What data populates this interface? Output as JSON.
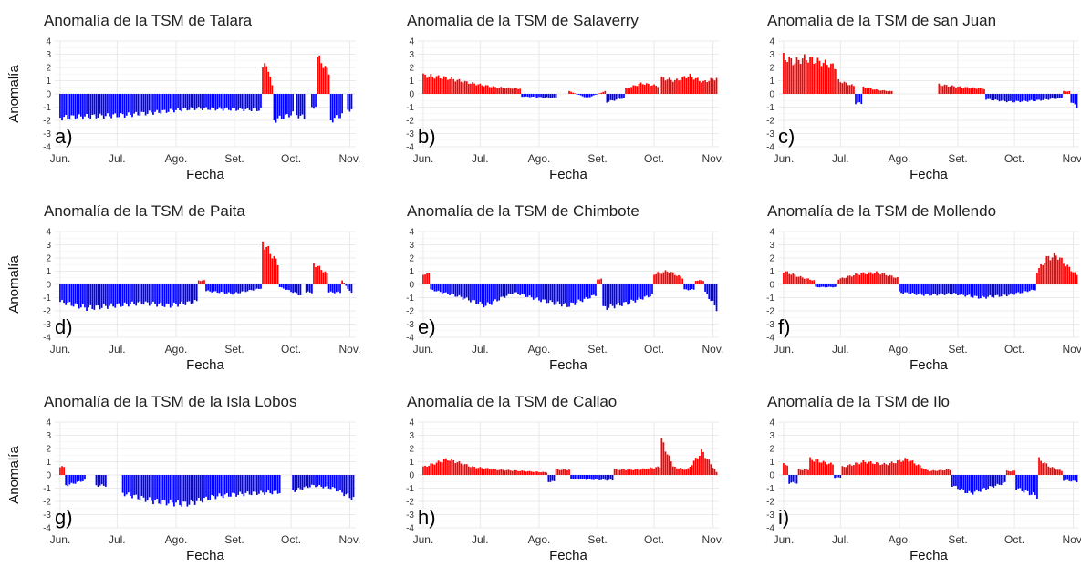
{
  "colors": {
    "positive": "#ff0000",
    "negative": "#0000ff",
    "panel_bg": "#ffffff",
    "grid_major": "#e4e4e4",
    "grid_minor": "#f2f2f2"
  },
  "chart_data": [
    {
      "type": "bar",
      "letter": "a)",
      "title": "Anomalía de la TSM de Talara",
      "xlabel": "Fecha",
      "ylabel": "Anomalía",
      "ylim": [
        -4,
        4
      ],
      "y_ticks": [
        "-4",
        "-3",
        "-2",
        "-1",
        "0",
        "1",
        "2",
        "3",
        "4"
      ],
      "x_ticks": [
        "Jun.",
        "Jul.",
        "Ago.",
        "Set.",
        "Oct.",
        "Nov."
      ],
      "x_range": [
        "2017-06-01",
        "2017-11-03"
      ],
      "segments": [
        {
          "start": "2017-06-01",
          "end": "2017-09-15",
          "values": [
            -1.8,
            -1.6,
            -1.1,
            -1.2
          ]
        },
        {
          "start": "2017-09-16",
          "end": "2017-09-21",
          "values": [
            2.0,
            2.2,
            0.6
          ]
        },
        {
          "start": "2017-09-22",
          "end": "2017-10-02",
          "values": [
            -2.0,
            -1.5
          ]
        },
        {
          "start": "2017-10-04",
          "end": "2017-10-08",
          "values": [
            -1.6,
            -1.8
          ]
        },
        {
          "start": "2017-10-12",
          "end": "2017-10-14",
          "values": [
            -1.0
          ]
        },
        {
          "start": "2017-10-15",
          "end": "2017-10-21",
          "values": [
            2.8,
            1.6
          ]
        },
        {
          "start": "2017-10-22",
          "end": "2017-10-28",
          "values": [
            -2.0,
            -1.6
          ]
        },
        {
          "start": "2017-10-31",
          "end": "2017-11-02",
          "values": [
            -1.2
          ]
        }
      ]
    },
    {
      "type": "bar",
      "letter": "b)",
      "title": "Anomalía de la TSM de Salaverry",
      "xlabel": "Fecha",
      "ylabel": "",
      "ylim": [
        -4,
        4
      ],
      "y_ticks": [
        "-4",
        "-3",
        "-2",
        "-1",
        "0",
        "1",
        "2",
        "3",
        "4"
      ],
      "x_ticks": [
        "Jun.",
        "Jul.",
        "Ago.",
        "Set.",
        "Oct.",
        "Nov."
      ],
      "x_range": [
        "2017-06-01",
        "2017-11-03"
      ],
      "segments": [
        {
          "start": "2017-06-01",
          "end": "2017-07-22",
          "values": [
            1.4,
            1.2,
            0.8,
            0.5,
            0.4
          ]
        },
        {
          "start": "2017-07-23",
          "end": "2017-08-10",
          "values": [
            -0.2,
            -0.3
          ]
        },
        {
          "start": "2017-08-17",
          "end": "2017-09-05",
          "values": [
            0.2,
            -0.3,
            0.2
          ]
        },
        {
          "start": "2017-09-06",
          "end": "2017-09-15",
          "values": [
            -0.6,
            -0.3
          ]
        },
        {
          "start": "2017-09-16",
          "end": "2017-10-03",
          "values": [
            0.4,
            0.8,
            0.6
          ]
        },
        {
          "start": "2017-10-05",
          "end": "2017-11-03",
          "values": [
            1.2,
            1.0,
            1.4,
            0.9,
            1.2
          ]
        }
      ]
    },
    {
      "type": "bar",
      "letter": "c)",
      "title": "Anomalía de la TSM de san Juan",
      "xlabel": "Fecha",
      "ylabel": "",
      "ylim": [
        -4,
        4
      ],
      "y_ticks": [
        "-4",
        "-3",
        "-2",
        "-1",
        "0",
        "1",
        "2",
        "3",
        "4"
      ],
      "x_ticks": [
        "Jun.",
        "Jul.",
        "Ago.",
        "Set.",
        "Oct.",
        "Nov."
      ],
      "x_range": [
        "2017-06-01",
        "2017-11-03"
      ],
      "segments": [
        {
          "start": "2017-06-01",
          "end": "2017-06-29",
          "values": [
            2.8,
            2.4,
            2.7,
            2.5,
            2.3,
            2.0
          ]
        },
        {
          "start": "2017-06-30",
          "end": "2017-07-08",
          "values": [
            1.0,
            0.6
          ]
        },
        {
          "start": "2017-07-09",
          "end": "2017-07-12",
          "values": [
            -0.7
          ]
        },
        {
          "start": "2017-07-13",
          "end": "2017-07-28",
          "values": [
            0.5,
            0.3,
            0.2
          ]
        },
        {
          "start": "2017-08-22",
          "end": "2017-09-15",
          "values": [
            0.7,
            0.5,
            0.4
          ]
        },
        {
          "start": "2017-09-16",
          "end": "2017-10-26",
          "values": [
            -0.4,
            -0.6,
            -0.5,
            -0.3
          ]
        },
        {
          "start": "2017-10-27",
          "end": "2017-10-30",
          "values": [
            0.2
          ]
        },
        {
          "start": "2017-10-31",
          "end": "2017-11-03",
          "values": [
            -0.6,
            -1.0
          ]
        }
      ]
    },
    {
      "type": "bar",
      "letter": "d)",
      "title": "Anomalía de la TSM de Paita",
      "xlabel": "Fecha",
      "ylabel": "Anomalía",
      "ylim": [
        -4,
        4
      ],
      "y_ticks": [
        "-4",
        "-3",
        "-2",
        "-1",
        "0",
        "1",
        "2",
        "3",
        "4"
      ],
      "x_ticks": [
        "Jun.",
        "Jul.",
        "Ago.",
        "Set.",
        "Oct.",
        "Nov."
      ],
      "x_range": [
        "2017-06-01",
        "2017-11-03"
      ],
      "segments": [
        {
          "start": "2017-06-01",
          "end": "2017-08-12",
          "values": [
            -1.3,
            -1.8,
            -1.6,
            -1.4,
            -1.6,
            -1.3
          ]
        },
        {
          "start": "2017-08-13",
          "end": "2017-08-16",
          "values": [
            0.3
          ]
        },
        {
          "start": "2017-08-17",
          "end": "2017-09-15",
          "values": [
            -0.5,
            -0.7,
            -0.3
          ]
        },
        {
          "start": "2017-09-16",
          "end": "2017-09-24",
          "values": [
            3.2,
            1.6
          ]
        },
        {
          "start": "2017-09-25",
          "end": "2017-10-06",
          "values": [
            -0.2,
            -0.8
          ]
        },
        {
          "start": "2017-10-09",
          "end": "2017-10-12",
          "values": [
            -0.6
          ]
        },
        {
          "start": "2017-10-13",
          "end": "2017-10-20",
          "values": [
            1.6,
            0.8
          ]
        },
        {
          "start": "2017-10-21",
          "end": "2017-10-27",
          "values": [
            -0.6
          ]
        },
        {
          "start": "2017-10-28",
          "end": "2017-11-02",
          "values": [
            0.3,
            -0.7
          ]
        }
      ]
    },
    {
      "type": "bar",
      "letter": "e)",
      "title": "Anomalía de la TSM de Chimbote",
      "xlabel": "Fecha",
      "ylabel": "",
      "ylim": [
        -4,
        4
      ],
      "y_ticks": [
        "-4",
        "-3",
        "-2",
        "-1",
        "0",
        "1",
        "2",
        "3",
        "4"
      ],
      "x_ticks": [
        "Jun.",
        "Jul.",
        "Ago.",
        "Set.",
        "Oct.",
        "Nov."
      ],
      "x_range": [
        "2017-06-01",
        "2017-11-03"
      ],
      "segments": [
        {
          "start": "2017-06-01",
          "end": "2017-06-04",
          "values": [
            0.8
          ]
        },
        {
          "start": "2017-06-05",
          "end": "2017-08-31",
          "values": [
            -0.4,
            -0.9,
            -1.6,
            -0.6,
            -1.2,
            -1.6,
            -0.8
          ]
        },
        {
          "start": "2017-09-01",
          "end": "2017-09-03",
          "values": [
            0.4
          ]
        },
        {
          "start": "2017-09-04",
          "end": "2017-09-30",
          "values": [
            -1.8,
            -1.4,
            -0.8
          ]
        },
        {
          "start": "2017-10-01",
          "end": "2017-10-16",
          "values": [
            0.8,
            1.0,
            0.5
          ]
        },
        {
          "start": "2017-10-17",
          "end": "2017-10-22",
          "values": [
            -0.4
          ]
        },
        {
          "start": "2017-10-23",
          "end": "2017-10-27",
          "values": [
            0.3
          ]
        },
        {
          "start": "2017-10-28",
          "end": "2017-11-03",
          "values": [
            -0.6,
            -1.8
          ]
        }
      ]
    },
    {
      "type": "bar",
      "letter": "f)",
      "title": "Anomalía de la TSM de Mollendo",
      "xlabel": "Fecha",
      "ylabel": "",
      "ylim": [
        -4,
        4
      ],
      "y_ticks": [
        "-4",
        "-3",
        "-2",
        "-1",
        "0",
        "1",
        "2",
        "3",
        "4"
      ],
      "x_ticks": [
        "Jun.",
        "Jul.",
        "Ago.",
        "Set.",
        "Oct.",
        "Nov."
      ],
      "x_range": [
        "2017-06-01",
        "2017-11-03"
      ],
      "segments": [
        {
          "start": "2017-06-01",
          "end": "2017-06-17",
          "values": [
            1.0,
            0.6,
            0.3
          ]
        },
        {
          "start": "2017-06-18",
          "end": "2017-06-29",
          "values": [
            -0.2
          ]
        },
        {
          "start": "2017-06-30",
          "end": "2017-07-31",
          "values": [
            0.4,
            0.8,
            0.9,
            0.5
          ]
        },
        {
          "start": "2017-08-01",
          "end": "2017-10-12",
          "values": [
            -0.6,
            -0.8,
            -0.7,
            -1.0,
            -0.8,
            -0.4
          ]
        },
        {
          "start": "2017-10-13",
          "end": "2017-11-03",
          "values": [
            1.0,
            2.0,
            2.2,
            1.4,
            0.7
          ]
        }
      ]
    },
    {
      "type": "bar",
      "letter": "g)",
      "title": "Anomalía de la TSM de la Isla Lobos",
      "xlabel": "Fecha",
      "ylabel": "Anomalía",
      "ylim": [
        -4,
        4
      ],
      "y_ticks": [
        "-4",
        "-3",
        "-2",
        "-1",
        "0",
        "1",
        "2",
        "3",
        "4"
      ],
      "x_ticks": [
        "Jun.",
        "Jul.",
        "Ago.",
        "Set.",
        "Oct.",
        "Nov."
      ],
      "x_range": [
        "2017-06-01",
        "2017-11-03"
      ],
      "segments": [
        {
          "start": "2017-06-01",
          "end": "2017-06-03",
          "values": [
            0.6
          ]
        },
        {
          "start": "2017-06-04",
          "end": "2017-06-14",
          "values": [
            -0.8,
            -0.4
          ]
        },
        {
          "start": "2017-06-20",
          "end": "2017-06-25",
          "values": [
            -0.8
          ]
        },
        {
          "start": "2017-07-04",
          "end": "2017-09-25",
          "values": [
            -1.4,
            -2.0,
            -2.2,
            -1.6,
            -1.4,
            -1.3
          ]
        },
        {
          "start": "2017-10-02",
          "end": "2017-11-03",
          "values": [
            -1.2,
            -0.8,
            -1.0,
            -1.8
          ]
        }
      ]
    },
    {
      "type": "bar",
      "letter": "h)",
      "title": "Anomalía de la TSM de Callao",
      "xlabel": "Fecha",
      "ylabel": "",
      "ylim": [
        -4,
        4
      ],
      "y_ticks": [
        "-4",
        "-3",
        "-2",
        "-1",
        "0",
        "1",
        "2",
        "3",
        "4"
      ],
      "x_ticks": [
        "Jun.",
        "Jul.",
        "Ago.",
        "Set.",
        "Oct.",
        "Nov."
      ],
      "x_range": [
        "2017-06-01",
        "2017-11-03"
      ],
      "segments": [
        {
          "start": "2017-06-01",
          "end": "2017-08-05",
          "values": [
            0.6,
            1.2,
            0.6,
            0.4,
            0.3,
            0.2
          ]
        },
        {
          "start": "2017-08-06",
          "end": "2017-08-09",
          "values": [
            -0.5
          ]
        },
        {
          "start": "2017-08-10",
          "end": "2017-08-17",
          "values": [
            0.4
          ]
        },
        {
          "start": "2017-08-18",
          "end": "2017-09-09",
          "values": [
            -0.3,
            -0.4
          ]
        },
        {
          "start": "2017-09-10",
          "end": "2017-10-04",
          "values": [
            0.4,
            0.4,
            0.6
          ]
        },
        {
          "start": "2017-10-05",
          "end": "2017-10-10",
          "values": [
            2.6,
            1.0
          ]
        },
        {
          "start": "2017-10-11",
          "end": "2017-11-03",
          "values": [
            0.6,
            0.4,
            1.8,
            0.2
          ]
        }
      ]
    },
    {
      "type": "bar",
      "letter": "i)",
      "title": "Anomalía de la TSM de Ilo",
      "xlabel": "Fecha",
      "ylabel": "",
      "ylim": [
        -4,
        4
      ],
      "y_ticks": [
        "-4",
        "-3",
        "-2",
        "-1",
        "0",
        "1",
        "2",
        "3",
        "4"
      ],
      "x_ticks": [
        "Jun.",
        "Jul.",
        "Ago.",
        "Set.",
        "Oct.",
        "Nov."
      ],
      "x_range": [
        "2017-06-01",
        "2017-11-03"
      ],
      "segments": [
        {
          "start": "2017-06-01",
          "end": "2017-06-03",
          "values": [
            0.8
          ]
        },
        {
          "start": "2017-06-04",
          "end": "2017-06-08",
          "values": [
            -0.6
          ]
        },
        {
          "start": "2017-06-09",
          "end": "2017-06-14",
          "values": [
            0.4
          ]
        },
        {
          "start": "2017-06-15",
          "end": "2017-06-27",
          "values": [
            1.2,
            0.8
          ]
        },
        {
          "start": "2017-06-28",
          "end": "2017-07-01",
          "values": [
            -0.2
          ]
        },
        {
          "start": "2017-07-02",
          "end": "2017-08-28",
          "values": [
            0.6,
            1.0,
            0.8,
            1.2,
            0.3,
            0.4
          ]
        },
        {
          "start": "2017-08-29",
          "end": "2017-09-26",
          "values": [
            -0.8,
            -1.4,
            -1.0,
            -0.6
          ]
        },
        {
          "start": "2017-09-27",
          "end": "2017-10-01",
          "values": [
            0.3
          ]
        },
        {
          "start": "2017-10-02",
          "end": "2017-10-13",
          "values": [
            -1.0,
            -1.6
          ]
        },
        {
          "start": "2017-10-14",
          "end": "2017-10-26",
          "values": [
            1.2,
            0.6,
            0.3
          ]
        },
        {
          "start": "2017-10-27",
          "end": "2017-11-03",
          "values": [
            -0.4,
            -0.5
          ]
        }
      ]
    }
  ]
}
